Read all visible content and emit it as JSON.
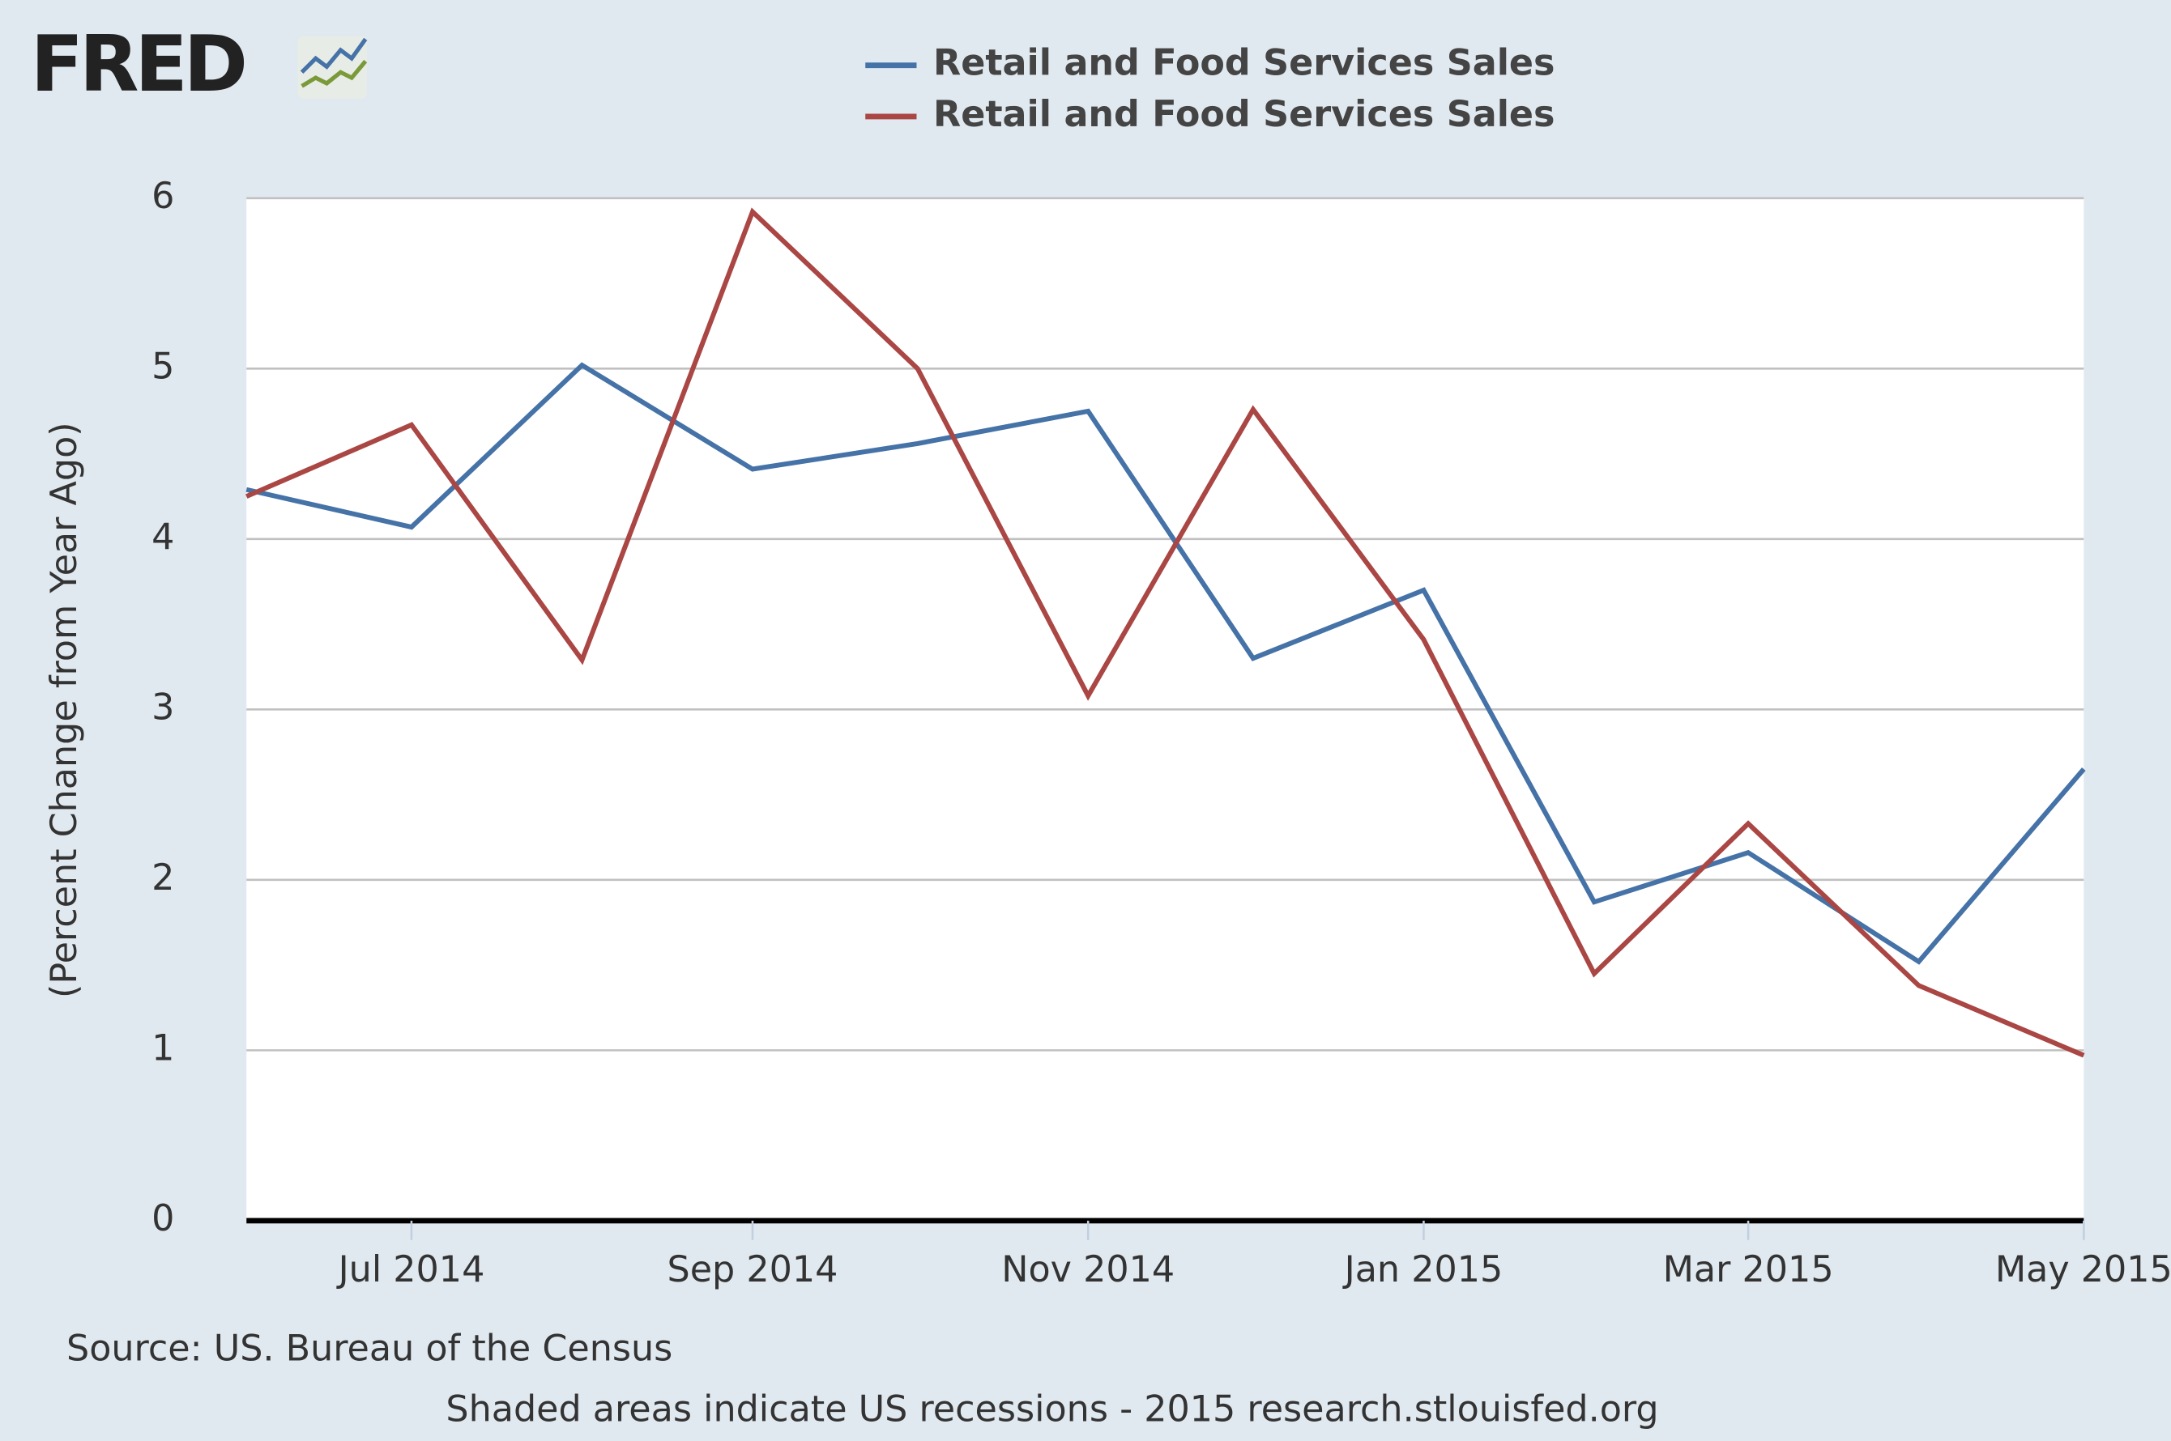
{
  "logo": "FRED",
  "chart_data": {
    "type": "line",
    "x": [
      "2014-06",
      "2014-07",
      "2014-08",
      "2014-09",
      "2014-10",
      "2014-11",
      "2014-12",
      "2015-01",
      "2015-02",
      "2015-03",
      "2015-04",
      "2015-05"
    ],
    "series": [
      {
        "name": "Retail and Food Services Sales",
        "color": "#4572a7",
        "values": [
          4.29,
          4.07,
          5.02,
          4.41,
          4.56,
          4.75,
          3.3,
          3.7,
          1.87,
          2.16,
          1.52,
          2.65
        ]
      },
      {
        "name": "Retail and Food Services Sales",
        "color": "#aa4643",
        "values": [
          4.25,
          4.67,
          3.29,
          5.92,
          5.0,
          3.08,
          4.76,
          3.41,
          1.45,
          2.33,
          1.38,
          0.97
        ]
      }
    ],
    "ylabel": "(Percent Change from Year Ago)",
    "xlim": [
      "2014-06",
      "2015-05"
    ],
    "xticks": [
      {
        "value": "2014-07",
        "label": "Jul 2014"
      },
      {
        "value": "2014-09",
        "label": "Sep 2014"
      },
      {
        "value": "2014-11",
        "label": "Nov 2014"
      },
      {
        "value": "2015-01",
        "label": "Jan 2015"
      },
      {
        "value": "2015-03",
        "label": "Mar 2015"
      },
      {
        "value": "2015-05",
        "label": "May 2015"
      }
    ],
    "ylim": [
      0,
      6
    ],
    "yticks": [
      0,
      1,
      2,
      3,
      4,
      5,
      6
    ],
    "grid": true,
    "source": "Source: US. Bureau of the Census",
    "note": "Shaded areas indicate US recessions - 2015 research.stlouisfed.org"
  }
}
